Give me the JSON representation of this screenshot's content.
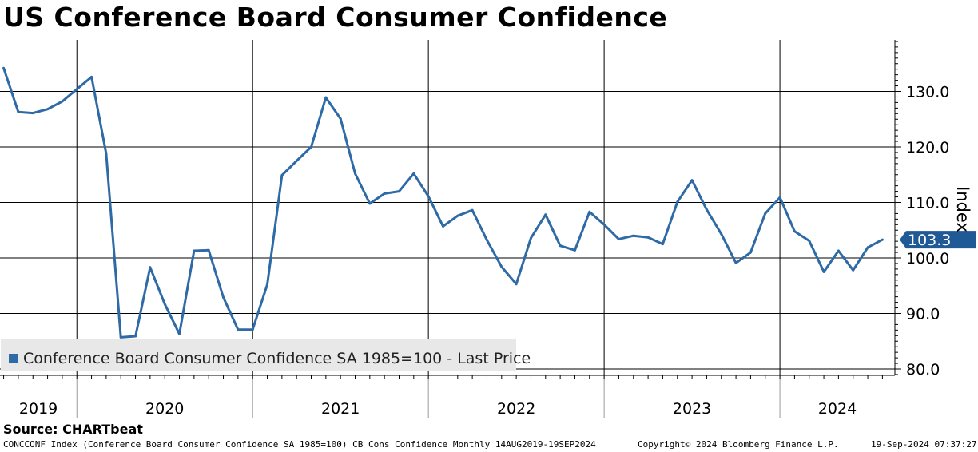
{
  "title": "US Conference Board Consumer Confidence",
  "source": "Source: CHARTbeat",
  "footer": {
    "left": "CONCCONF Index (Conference Board Consumer Confidence SA 1985=100) CB Cons Confidence  Monthly 14AUG2019-19SEP2024",
    "center": "Copyright© 2024 Bloomberg Finance L.P.",
    "right": "19-Sep-2024 07:37:27"
  },
  "chart_data": {
    "type": "line",
    "title": "US Conference Board Consumer Confidence",
    "ylabel": "Index",
    "xlabel": "",
    "ylim": [
      78,
      140
    ],
    "y_ticks": [
      "130.0",
      "120.0",
      "110.0",
      "100.0",
      "90.0",
      "80.0"
    ],
    "y_tick_values": [
      130,
      120,
      110,
      100,
      90,
      80
    ],
    "x_year_labels": [
      "2019",
      "2020",
      "2021",
      "2022",
      "2023",
      "2024"
    ],
    "legend": {
      "label": "Conference Board Consumer Confidence SA 1985=100 - Last Price",
      "position": "bottom-left"
    },
    "last_price_label": "103.3",
    "grid": true,
    "colors": {
      "line": "#2e6aa6",
      "last_price_badge": "#1f5a96",
      "grid": "#000000"
    },
    "series": [
      {
        "name": "Conference Board Consumer Confidence SA 1985=100 - Last Price",
        "x": [
          "2019-08",
          "2019-09",
          "2019-10",
          "2019-11",
          "2019-12",
          "2020-01",
          "2020-02",
          "2020-03",
          "2020-04",
          "2020-05",
          "2020-06",
          "2020-07",
          "2020-08",
          "2020-09",
          "2020-10",
          "2020-11",
          "2020-12",
          "2021-01",
          "2021-02",
          "2021-03",
          "2021-04",
          "2021-05",
          "2021-06",
          "2021-07",
          "2021-08",
          "2021-09",
          "2021-10",
          "2021-11",
          "2021-12",
          "2022-01",
          "2022-02",
          "2022-03",
          "2022-04",
          "2022-05",
          "2022-06",
          "2022-07",
          "2022-08",
          "2022-09",
          "2022-10",
          "2022-11",
          "2022-12",
          "2023-01",
          "2023-02",
          "2023-03",
          "2023-04",
          "2023-05",
          "2023-06",
          "2023-07",
          "2023-08",
          "2023-09",
          "2023-10",
          "2023-11",
          "2023-12",
          "2024-01",
          "2024-02",
          "2024-03",
          "2024-04",
          "2024-05",
          "2024-06",
          "2024-07",
          "2024-08"
        ],
        "values": [
          134.2,
          126.3,
          126.1,
          126.8,
          128.2,
          130.4,
          132.6,
          118.8,
          85.7,
          85.9,
          98.3,
          91.7,
          86.3,
          101.3,
          101.4,
          92.9,
          87.1,
          87.1,
          95.2,
          114.9,
          117.5,
          120.0,
          128.9,
          125.1,
          115.2,
          109.8,
          111.6,
          112.0,
          115.2,
          111.1,
          105.7,
          107.6,
          108.6,
          103.2,
          98.4,
          95.3,
          103.6,
          107.8,
          102.2,
          101.4,
          108.3,
          106.0,
          103.4,
          104.0,
          103.7,
          102.5,
          110.1,
          114.0,
          108.7,
          104.3,
          99.1,
          101.0,
          108.0,
          110.9,
          104.8,
          103.1,
          97.5,
          101.3,
          97.8,
          101.9,
          103.3
        ]
      }
    ]
  }
}
